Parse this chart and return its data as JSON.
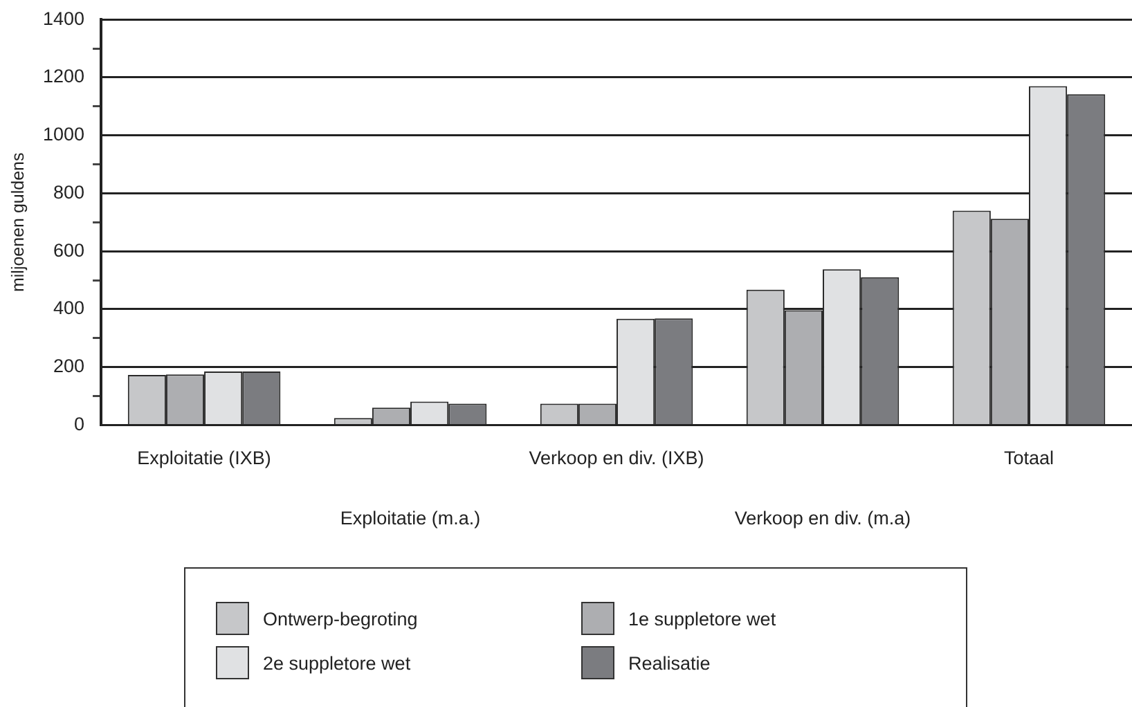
{
  "chart_data": {
    "type": "bar",
    "ylabel": "miljoenen guldens",
    "categories": [
      "Exploitatie (IXB)",
      "Exploitatie (m.a.)",
      "Verkoop en div. (IXB)",
      "Verkoop en div. (m.a)",
      "Totaal"
    ],
    "series": [
      {
        "name": "Ontwerp-begroting",
        "color": "#c6c7c9",
        "values": [
          173,
          24,
          74,
          467,
          740
        ]
      },
      {
        "name": "1e suppletore wet",
        "color": "#adaeb1",
        "values": [
          175,
          60,
          74,
          396,
          712
        ]
      },
      {
        "name": "2e suppletore wet",
        "color": "#e0e1e3",
        "values": [
          185,
          81,
          367,
          538,
          1170
        ]
      },
      {
        "name": "Realisatie",
        "color": "#7b7c80",
        "values": [
          185,
          74,
          368,
          510,
          1142
        ]
      }
    ],
    "ylim": [
      0,
      1400
    ],
    "yticks": [
      0,
      {
        "value": 100,
        "label": null
      },
      200,
      {
        "value": 300,
        "label": null
      },
      400,
      {
        "value": 500,
        "label": null
      },
      600,
      {
        "value": 700,
        "label": null
      },
      800,
      {
        "value": 900,
        "label": null
      },
      1000,
      {
        "value": 1100,
        "label": null
      },
      1200,
      {
        "value": 1300,
        "label": null
      },
      1400
    ],
    "grid": "y",
    "legend": "bottom"
  }
}
